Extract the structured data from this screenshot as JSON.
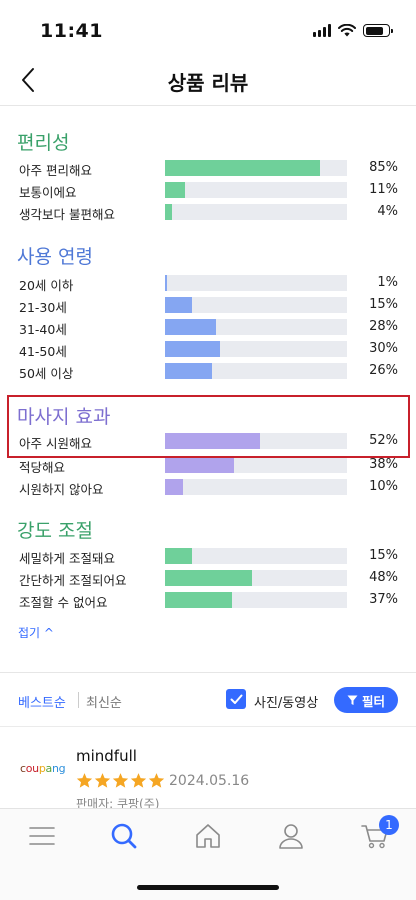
{
  "status_bar": {
    "time": "11:41"
  },
  "header": {
    "title": "상품 리뷰",
    "back_icon": "chevron-left-icon"
  },
  "colors": {
    "green": "#5fc98a",
    "blue": "#6d8ff0",
    "purple": "#a79ce8",
    "accent": "#346aff",
    "highlight_border": "#c8202b"
  },
  "sections": [
    {
      "title": "편리성",
      "title_color": "#3aa16a",
      "bar_color": "#6fd09a",
      "rows": [
        {
          "label": "아주 편리해요",
          "percent_text": "85%",
          "value": 85
        },
        {
          "label": "보통이에요",
          "percent_text": "11%",
          "value": 11
        },
        {
          "label": "생각보다 불편해요",
          "percent_text": "4%",
          "value": 4
        }
      ]
    },
    {
      "title": "사용 연령",
      "title_color": "#4f78d6",
      "bar_color": "#85a6f2",
      "rows": [
        {
          "label": "20세 이하",
          "percent_text": "1%",
          "value": 1
        },
        {
          "label": "21-30세",
          "percent_text": "15%",
          "value": 15
        },
        {
          "label": "31-40세",
          "percent_text": "28%",
          "value": 28
        },
        {
          "label": "41-50세",
          "percent_text": "30%",
          "value": 30
        },
        {
          "label": "50세 이상",
          "percent_text": "26%",
          "value": 26
        }
      ]
    },
    {
      "title": "마사지 효과",
      "title_color": "#7d6fd0",
      "bar_color": "#b0a3ec",
      "rows": [
        {
          "label": "아주 시원해요",
          "percent_text": "52%",
          "value": 52
        },
        {
          "label": "적당해요",
          "percent_text": "38%",
          "value": 38
        },
        {
          "label": "시원하지 않아요",
          "percent_text": "10%",
          "value": 10
        }
      ]
    },
    {
      "title": "강도 조절",
      "title_color": "#3aa16a",
      "bar_color": "#6fd09a",
      "rows": [
        {
          "label": "세밀하게 조절돼요",
          "percent_text": "15%",
          "value": 15
        },
        {
          "label": "간단하게 조절되어요",
          "percent_text": "48%",
          "value": 48
        },
        {
          "label": "조절할 수 없어요",
          "percent_text": "37%",
          "value": 37
        }
      ]
    }
  ],
  "fold_link": "접기 ^",
  "sort": {
    "best": "베스트순",
    "recent": "최신순",
    "photo_video": "사진/동영상",
    "filter": "필터"
  },
  "review": {
    "seller_logo": "coupang",
    "reviewer": "mindfull",
    "rating": 5,
    "date": "2024.05.16",
    "seller": "판매자: 쿠팡(주)"
  },
  "tab_bar": {
    "items": [
      "menu-icon",
      "search-icon",
      "home-icon",
      "user-icon",
      "cart-icon"
    ],
    "cart_badge": "1"
  }
}
